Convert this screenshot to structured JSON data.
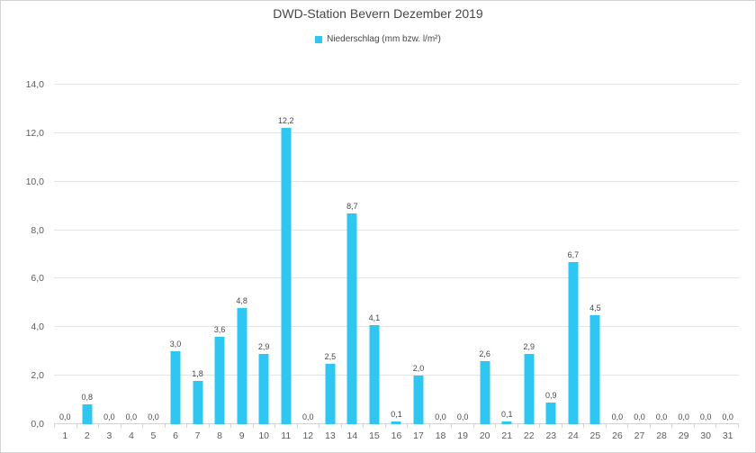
{
  "chart_data": {
    "type": "bar",
    "title": "DWD-Station Bevern Dezember 2019",
    "legend_label": "Niederschlag (mm bzw. l/m²)",
    "legend_position": "top",
    "categories": [
      "1",
      "2",
      "3",
      "4",
      "5",
      "6",
      "7",
      "8",
      "9",
      "10",
      "11",
      "12",
      "13",
      "14",
      "15",
      "16",
      "17",
      "18",
      "19",
      "20",
      "21",
      "22",
      "23",
      "24",
      "25",
      "26",
      "27",
      "28",
      "29",
      "30",
      "31"
    ],
    "values": [
      0.0,
      0.8,
      0.0,
      0.0,
      0.0,
      3.0,
      1.8,
      3.6,
      4.8,
      2.9,
      12.2,
      0.0,
      2.5,
      8.7,
      4.1,
      0.1,
      2.0,
      0.0,
      0.0,
      2.6,
      0.1,
      2.9,
      0.9,
      6.7,
      4.5,
      0.0,
      0.0,
      0.0,
      0.0,
      0.0,
      0.0
    ],
    "value_labels": [
      "0,0",
      "0,8",
      "0,0",
      "0,0",
      "0,0",
      "3,0",
      "1,8",
      "3,6",
      "4,8",
      "2,9",
      "12,2",
      "0,0",
      "2,5",
      "8,7",
      "4,1",
      "0,1",
      "2,0",
      "0,0",
      "0,0",
      "2,6",
      "0,1",
      "2,9",
      "0,9",
      "6,7",
      "4,5",
      "0,0",
      "0,0",
      "0,0",
      "0,0",
      "0,0",
      "0,0"
    ],
    "xlabel": "",
    "ylabel": "",
    "ylim": [
      0,
      14
    ],
    "ytick_step": 2,
    "ytick_labels": [
      "0,0",
      "2,0",
      "4,0",
      "6,0",
      "8,0",
      "10,0",
      "12,0",
      "14,0"
    ],
    "grid": "on",
    "colors": {
      "bar": "#2fc7f2",
      "grid": "#e4e4e4",
      "axis": "#d2d2d2",
      "title_text": "#474747",
      "tick_text": "#5c5c5c",
      "data_label_text": "#474747"
    }
  }
}
